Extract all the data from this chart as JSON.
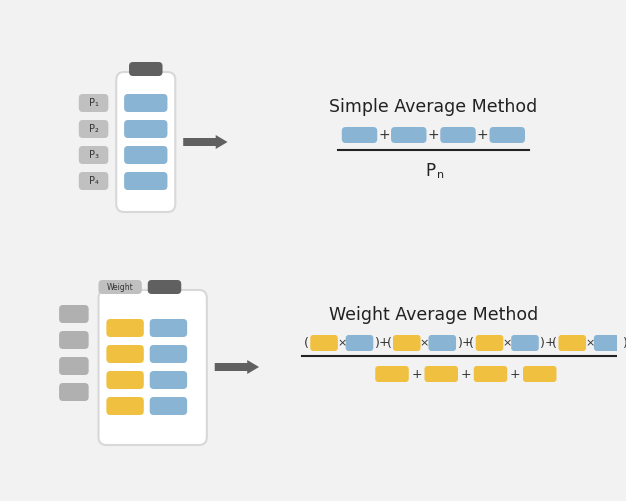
{
  "bg_color": "#f2f2f2",
  "blue_color": "#8ab4d4",
  "yellow_color": "#f0c040",
  "gray_color": "#b0b0b0",
  "dark_gray": "#606060",
  "label_bg": "#c0c0c0",
  "white": "#ffffff",
  "title1": "Simple Average Method",
  "title2": "Weight Average Method",
  "p_labels": [
    "P₁",
    "P₂",
    "P₃",
    "P₄"
  ],
  "weight_label": "Weight",
  "pn_label": "P",
  "pn_sub": "n",
  "fig_w": 6.26,
  "fig_h": 5.01,
  "dpi": 100
}
